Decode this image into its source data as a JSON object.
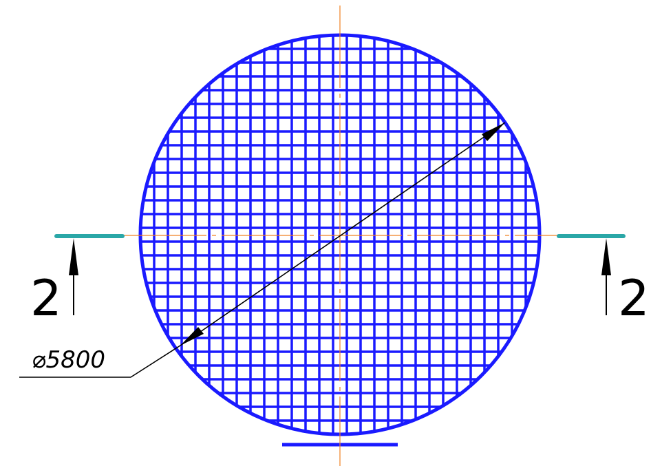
{
  "drawing": {
    "dimension_label": "⌀5800",
    "section_label_left": "2",
    "section_label_right": "2",
    "grid_cells_across": 29
  },
  "colors": {
    "grid": "#1a1aff",
    "centerline": "#f08020",
    "section_marker": "#2aa7a7",
    "dimension": "#000000"
  }
}
